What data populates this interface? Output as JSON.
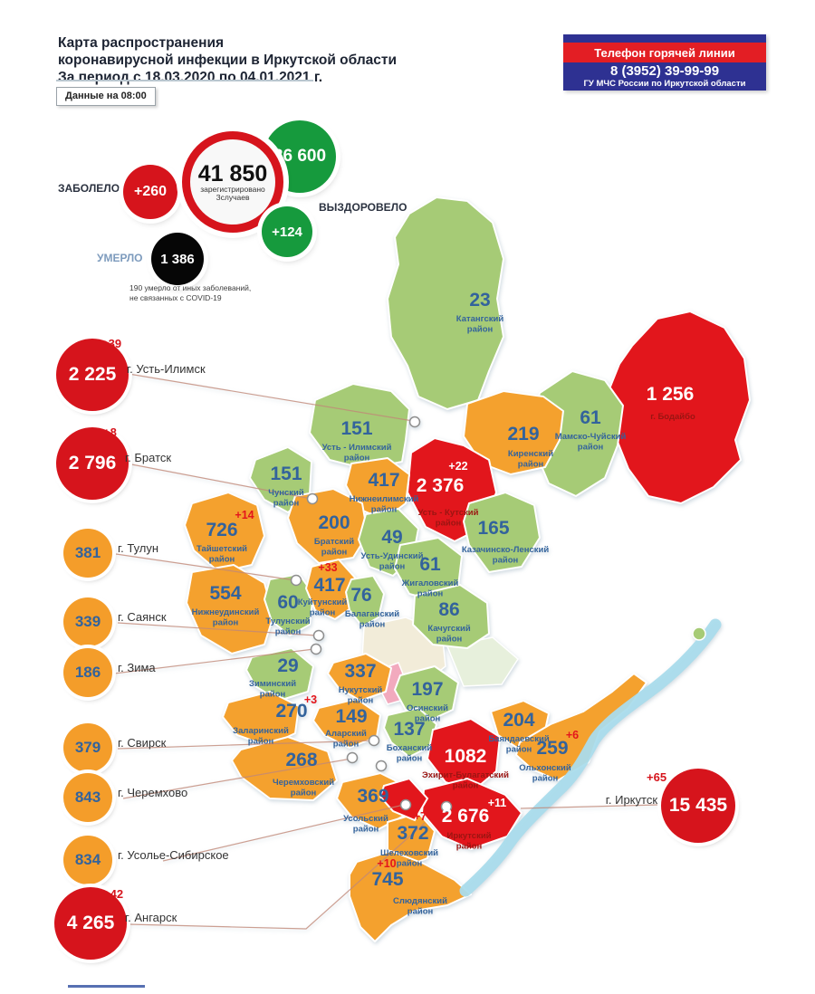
{
  "header": {
    "title_lines": [
      "Карта распространения",
      "коронавирусной инфекции в Иркутской области",
      "За период с 18.03.2020 по 04.01.2021 г."
    ],
    "data_note": "Данные на 08:00"
  },
  "hotline": {
    "title": "Телефон горячей линии",
    "phone": "8 (3952) 39-99-99",
    "org": "ГУ МЧС России по Иркутской области"
  },
  "stats": {
    "infected_label": "ЗАБОЛЕЛО",
    "infected_delta": "+260",
    "total": "41 850",
    "total_caption_1": "зарегистрировано",
    "total_caption_2": "Зслучаев",
    "recovered": "36 600",
    "recovered_label": "ВЫЗДОРОВЕЛО",
    "recovered_delta": "+124",
    "died": "1 386",
    "died_label": "УМЕРЛО",
    "died_note": "190 умерло от иных заболеваний, не связанных с COVID-19"
  },
  "cities": [
    {
      "id": "ust-ilimsk",
      "label": "г. Усть-Илимск",
      "value": "2 225",
      "delta": "+39",
      "color": "red"
    },
    {
      "id": "bratsk",
      "label": "г. Братск",
      "value": "2 796",
      "delta": "+8",
      "color": "red"
    },
    {
      "id": "tulun",
      "label": "г. Тулун",
      "value": "381",
      "color": "orange"
    },
    {
      "id": "sayansk",
      "label": "г. Саянск",
      "value": "339",
      "color": "orange"
    },
    {
      "id": "zima",
      "label": "г. Зима",
      "value": "186",
      "color": "orange"
    },
    {
      "id": "svirsk",
      "label": "г. Свирск",
      "value": "379",
      "color": "orange"
    },
    {
      "id": "cheremkhovo",
      "label": "г. Черемхово",
      "value": "843",
      "color": "orange"
    },
    {
      "id": "usolye",
      "label": "г. Усолье-Сибирское",
      "value": "834",
      "color": "orange"
    },
    {
      "id": "angarsk",
      "label": "г. Ангарск",
      "value": "4 265",
      "delta": "+42",
      "color": "red"
    },
    {
      "id": "irkutsk",
      "label": "г. Иркутск",
      "value": "15 435",
      "delta": "+65",
      "color": "red"
    }
  ],
  "map": {
    "regions": [
      {
        "id": "katangsky",
        "name": "Катангский район",
        "value": "23",
        "level": "green"
      },
      {
        "id": "bodaibo",
        "name": "г. Бодайбо",
        "value": "1 256",
        "level": "red"
      },
      {
        "id": "mamsko-chuysky",
        "name": "Мамско-Чуйский район",
        "value": "61",
        "level": "green"
      },
      {
        "id": "ust-ilimsky",
        "name": "Усть - Илимский район",
        "value": "151",
        "level": "green"
      },
      {
        "id": "kirensky",
        "name": "Киренский район",
        "value": "219",
        "level": "orange"
      },
      {
        "id": "ust-kutsky",
        "name": "Усть - Кутский район",
        "value": "2 376",
        "delta": "+22",
        "level": "red"
      },
      {
        "id": "nizhneilimsky",
        "name": "Нижнеилимский район",
        "value": "417",
        "level": "orange"
      },
      {
        "id": "chunsky",
        "name": "Чунский район",
        "value": "151",
        "level": "green"
      },
      {
        "id": "taishetsky",
        "name": "Тайшетский район",
        "value": "726",
        "delta": "+14",
        "level": "orange"
      },
      {
        "id": "bratsky",
        "name": "Братский район",
        "value": "200",
        "level": "orange"
      },
      {
        "id": "ust-udinsky",
        "name": "Усть-Удинский район",
        "value": "49",
        "level": "green"
      },
      {
        "id": "kazachinsko-lensky",
        "name": "Казачинско-Ленский район",
        "value": "165",
        "level": "green"
      },
      {
        "id": "zhigalovsky",
        "name": "Жигаловский район",
        "value": "61",
        "level": "green"
      },
      {
        "id": "nizhneudinsky",
        "name": "Нижнеудинский район",
        "value": "554",
        "level": "orange"
      },
      {
        "id": "tulunsky",
        "name": "Тулунский район",
        "value": "60",
        "level": "green"
      },
      {
        "id": "kuytunsky",
        "name": "Куйтунский район",
        "value": "417",
        "delta": "+33",
        "level": "orange"
      },
      {
        "id": "balagansky",
        "name": "Балаганский район",
        "value": "76",
        "level": "green"
      },
      {
        "id": "kachugsky",
        "name": "Качугский район",
        "value": "86",
        "level": "green"
      },
      {
        "id": "ziminsky",
        "name": "Зиминский район",
        "value": "29",
        "level": "green"
      },
      {
        "id": "nukutsky",
        "name": "Нукутский район",
        "value": "337",
        "level": "orange"
      },
      {
        "id": "osinsky",
        "name": "Осинский район",
        "value": "197",
        "level": "green"
      },
      {
        "id": "zalarinsky",
        "name": "Заларинский район",
        "value": "270",
        "delta": "+3",
        "level": "orange"
      },
      {
        "id": "alarsky",
        "name": "Аларский район",
        "value": "149",
        "level": "orange"
      },
      {
        "id": "bokhansky",
        "name": "Боханский район",
        "value": "137",
        "level": "green"
      },
      {
        "id": "ekhirit",
        "name": "Эхирит-Булагатский район",
        "value": "1082",
        "level": "red"
      },
      {
        "id": "bayandaevsky",
        "name": "Баяндаевский район",
        "value": "204",
        "level": "orange"
      },
      {
        "id": "olkhonsky",
        "name": "Ольхонский район",
        "value": "259",
        "delta": "+6",
        "level": "orange"
      },
      {
        "id": "cheremkhovsky",
        "name": "Черемховский район",
        "value": "268",
        "level": "orange"
      },
      {
        "id": "usolsky",
        "name": "Усольский район",
        "value": "369",
        "level": "orange"
      },
      {
        "id": "shelekhovsky",
        "name": "Шелеховский район",
        "value": "372",
        "delta": "+7",
        "level": "orange"
      },
      {
        "id": "irkutsky",
        "name": "Иркутский район",
        "value": "2 676",
        "delta": "+11",
        "level": "red"
      },
      {
        "id": "slyudyansky",
        "name": "Слюдянский район",
        "value": "745",
        "delta": "+10",
        "level": "orange"
      }
    ]
  },
  "colors": {
    "region_green": "#A6CB76",
    "region_orange": "#F4A12E",
    "region_red": "#E2161C",
    "circle_red": "#D6141C",
    "circle_orange": "#F49D2A",
    "recovered_green": "#169A3D",
    "died_black": "#060606",
    "navy": "#2E3192",
    "hotline_red": "#E31E24",
    "number_blue": "#33639C",
    "delta_red": "#E3161C",
    "red_region_name": "#9B1512",
    "lake_blue": "#AADCEC"
  }
}
